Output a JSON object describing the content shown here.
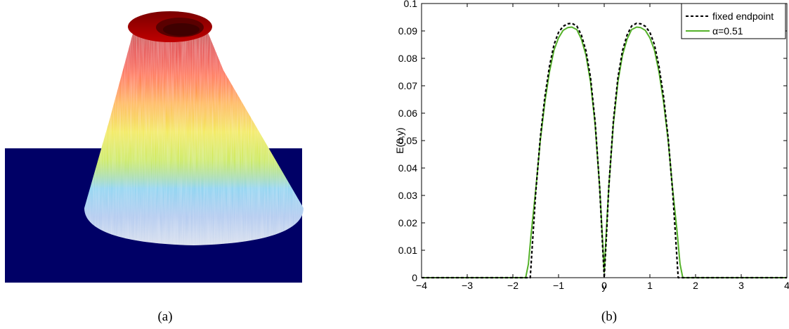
{
  "panel_a": {
    "caption": "(a)",
    "colors": {
      "background": "#000066",
      "base": "#ffffff",
      "bands": [
        "#d4dcec",
        "#a8c4ee",
        "#7fd0f0",
        "#c8e83a",
        "#f2e81e",
        "#ffb000",
        "#ff5a00",
        "#e00000",
        "#a60000"
      ]
    }
  },
  "panel_b": {
    "caption": "(b)"
  },
  "chart_data": {
    "type": "line",
    "title": "",
    "xlabel": "y",
    "ylabel": "E(0,y)",
    "xlim": [
      -4,
      4
    ],
    "ylim": [
      0,
      0.1
    ],
    "x_ticks": [
      -4,
      -3,
      -2,
      -1,
      0,
      1,
      2,
      3,
      4
    ],
    "x_tick_labels": [
      "−4",
      "−3",
      "−2",
      "−1",
      "0",
      "1",
      "2",
      "3",
      "4"
    ],
    "y_ticks": [
      0,
      0.01,
      0.02,
      0.03,
      0.04,
      0.05,
      0.06,
      0.07,
      0.08,
      0.09,
      0.1
    ],
    "y_tick_labels": [
      "0",
      "0.01",
      "0.02",
      "0.03",
      "0.04",
      "0.05",
      "0.06",
      "0.07",
      "0.08",
      "0.09",
      "0.1"
    ],
    "grid": false,
    "legend_position": "top-right",
    "series": [
      {
        "name": "fixed endpoint",
        "color": "#000000",
        "style": "dashed",
        "x": [
          -4,
          -1.62,
          -1.5,
          -1.4,
          -1.3,
          -1.2,
          -1.1,
          -1.0,
          -0.9,
          -0.8,
          -0.71,
          -0.6,
          -0.5,
          -0.4,
          -0.3,
          -0.2,
          -0.1,
          -0.05,
          0,
          0.05,
          0.1,
          0.2,
          0.3,
          0.4,
          0.5,
          0.6,
          0.71,
          0.8,
          0.9,
          1.0,
          1.1,
          1.2,
          1.3,
          1.4,
          1.5,
          1.62,
          4
        ],
        "y": [
          0,
          0,
          0.031,
          0.051,
          0.066,
          0.077,
          0.085,
          0.0895,
          0.0917,
          0.0926,
          0.0928,
          0.0918,
          0.0885,
          0.0828,
          0.073,
          0.057,
          0.033,
          0.016,
          0,
          0.016,
          0.033,
          0.057,
          0.073,
          0.0828,
          0.0885,
          0.0918,
          0.0928,
          0.0926,
          0.0917,
          0.0895,
          0.085,
          0.077,
          0.066,
          0.051,
          0.031,
          0,
          0
        ]
      },
      {
        "name": "α=0.51",
        "color": "#55b22a",
        "style": "solid",
        "x": [
          -4,
          -1.72,
          -1.66,
          -1.6,
          -1.5,
          -1.4,
          -1.3,
          -1.2,
          -1.1,
          -1.0,
          -0.9,
          -0.8,
          -0.71,
          -0.6,
          -0.5,
          -0.4,
          -0.3,
          -0.2,
          -0.1,
          -0.06,
          -0.03,
          0,
          0.03,
          0.06,
          0.1,
          0.2,
          0.3,
          0.4,
          0.5,
          0.6,
          0.71,
          0.8,
          0.9,
          1.0,
          1.1,
          1.2,
          1.3,
          1.4,
          1.5,
          1.6,
          1.66,
          1.72,
          4
        ],
        "y": [
          0,
          0,
          0.005,
          0.016,
          0.032,
          0.05,
          0.064,
          0.075,
          0.083,
          0.0875,
          0.0902,
          0.0912,
          0.0914,
          0.0905,
          0.087,
          0.0812,
          0.0715,
          0.056,
          0.033,
          0.021,
          0.012,
          0.002,
          0.012,
          0.021,
          0.033,
          0.056,
          0.0715,
          0.0812,
          0.087,
          0.0905,
          0.0914,
          0.0912,
          0.0902,
          0.0875,
          0.083,
          0.075,
          0.064,
          0.05,
          0.032,
          0.016,
          0.005,
          0,
          0
        ]
      }
    ]
  }
}
